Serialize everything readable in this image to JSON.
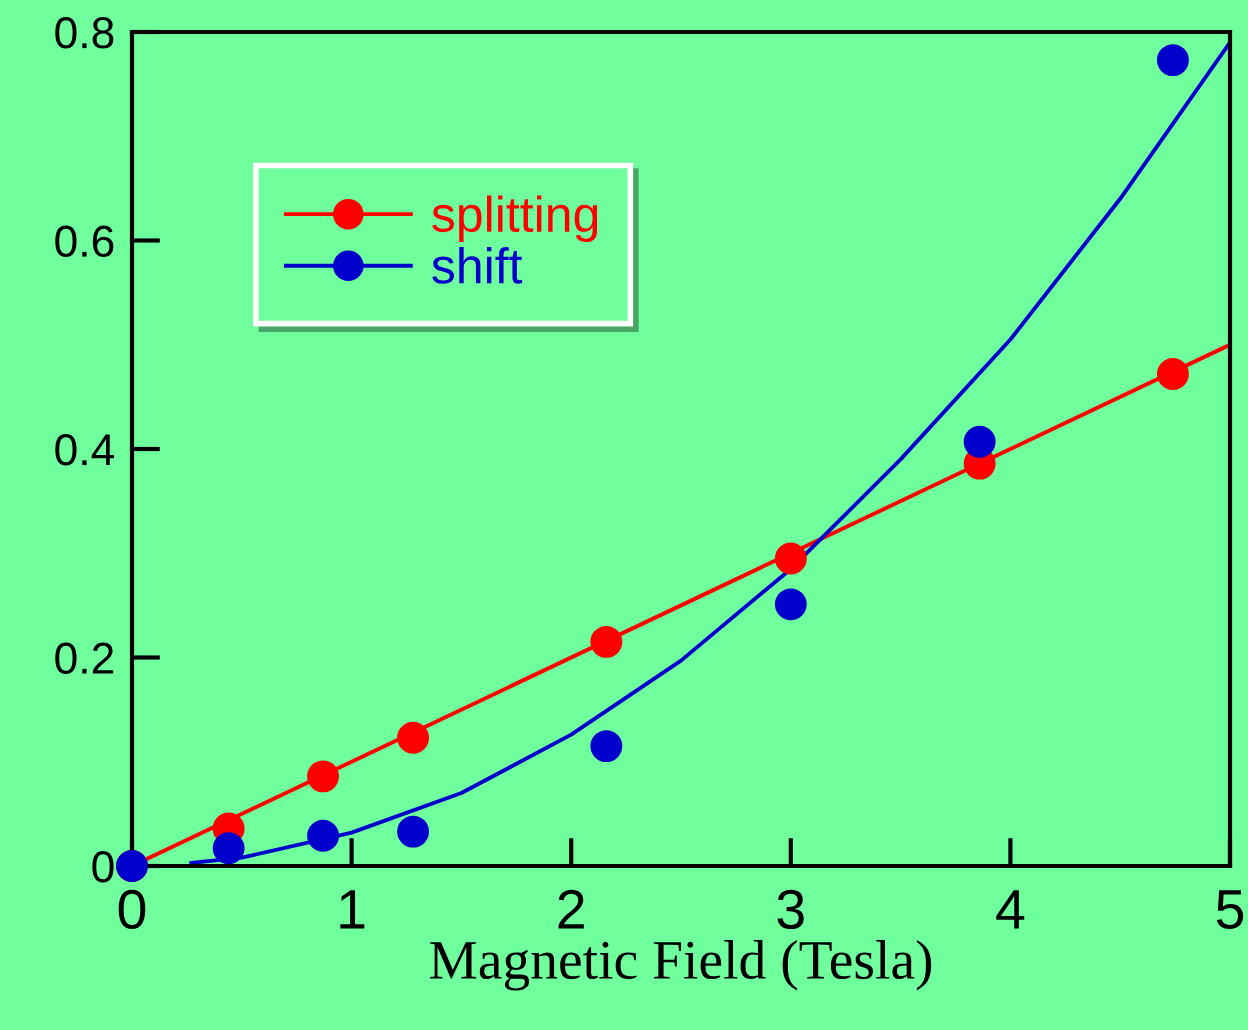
{
  "chart_data": {
    "type": "scatter",
    "xlabel": "Magnetic Field (Tesla)",
    "xlim": [
      0,
      5
    ],
    "xticks": [
      0,
      1,
      2,
      3,
      4,
      5
    ],
    "ylim": [
      0,
      0.8
    ],
    "yticks": [
      0,
      0.2,
      0.4,
      0.6,
      0.8
    ],
    "grid": false,
    "legend": "top left",
    "series": [
      {
        "name": "splitting",
        "color": "#ff0000",
        "marker": "circle",
        "x": [
          0,
          0.44,
          0.87,
          1.28,
          2.16,
          3.0,
          3.86,
          4.74
        ],
        "values": [
          0,
          0.036,
          0.086,
          0.123,
          0.215,
          0.295,
          0.386,
          0.472
        ]
      },
      {
        "name": "shift",
        "color": "#0000cc",
        "marker": "circle",
        "x": [
          0,
          0.44,
          0.87,
          1.28,
          2.16,
          3.0,
          3.86,
          4.74
        ],
        "values": [
          0,
          0.017,
          0.029,
          0.033,
          0.115,
          0.251,
          0.407,
          0.773
        ]
      },
      {
        "color": "#ff0000",
        "type": "line",
        "marker": "none",
        "x": [
          0,
          5
        ],
        "values": [
          0,
          0.5
        ]
      },
      {
        "color": "#0000cc",
        "type": "line",
        "marker": "none",
        "x": [
          0.27,
          0.5,
          1,
          1.5,
          2,
          2.5,
          3,
          3.5,
          4,
          4.5,
          5
        ],
        "values": [
          0.003,
          0.008,
          0.032,
          0.07,
          0.126,
          0.197,
          0.285,
          0.39,
          0.505,
          0.64,
          0.79
        ]
      }
    ]
  }
}
